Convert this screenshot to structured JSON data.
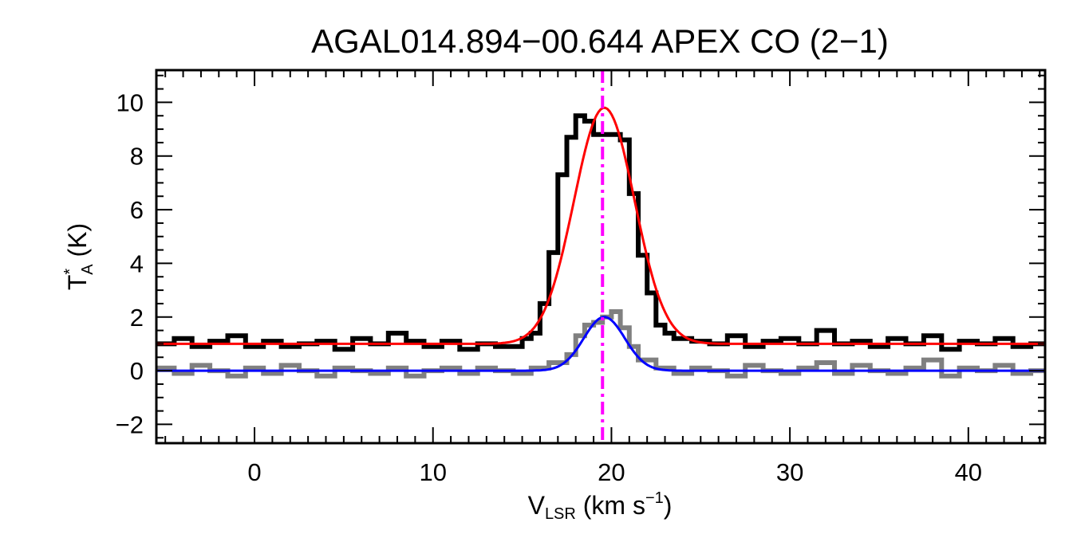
{
  "chart_data": {
    "type": "line",
    "title": "AGAL014.894−00.644  APEX CO (2−1)",
    "xlabel": {
      "main": "V",
      "sub": "LSR",
      "rest": " (km s",
      "sup": "−1",
      "close": ")"
    },
    "ylabel": {
      "main": "T",
      "sup": "*",
      "sub": "A",
      "rest": " (K)"
    },
    "xlim": [
      -5.5,
      44.3
    ],
    "ylim": [
      -2.7,
      11.2
    ],
    "x_ticks": [
      0,
      10,
      20,
      30,
      40
    ],
    "x_tick_labels": [
      "0",
      "10",
      "20",
      "30",
      "40"
    ],
    "y_ticks": [
      -2,
      0,
      2,
      4,
      6,
      8,
      10
    ],
    "y_tick_labels": [
      "−2",
      "0",
      "2",
      "4",
      "6",
      "8",
      "10"
    ],
    "x_minor_step": 1,
    "y_minor_step": 0.5,
    "grid": false,
    "vertical_marker": {
      "x": 19.5,
      "color": "#ff00ff",
      "style": "dash-dot"
    },
    "series": [
      {
        "color": "#000000",
        "style": "step",
        "x": [
          -5.5,
          -4.5,
          -3.5,
          -2.5,
          -1.5,
          -0.5,
          0.5,
          1.5,
          2.5,
          3.5,
          4.5,
          5.5,
          6.5,
          7.5,
          8.5,
          9.5,
          10.5,
          11.5,
          12.5,
          13.5,
          14.5,
          15.0,
          15.5,
          16.0,
          16.5,
          17.0,
          17.5,
          18.0,
          18.5,
          19.0,
          19.5,
          20.0,
          20.5,
          21.0,
          21.5,
          22.0,
          22.5,
          23.0,
          23.5,
          24.5,
          25.5,
          26.5,
          27.5,
          28.5,
          29.5,
          30.5,
          31.5,
          32.5,
          33.5,
          34.5,
          35.5,
          36.5,
          37.5,
          38.5,
          39.5,
          40.5,
          41.5,
          42.5,
          43.5,
          44.3
        ],
        "values": [
          1.0,
          1.2,
          0.9,
          1.1,
          1.3,
          0.9,
          1.1,
          0.9,
          1.0,
          1.1,
          0.8,
          1.2,
          1.0,
          1.4,
          1.1,
          0.9,
          1.1,
          0.8,
          1.0,
          0.9,
          0.9,
          1.2,
          1.4,
          2.5,
          4.4,
          7.3,
          8.7,
          9.5,
          9.3,
          8.8,
          8.8,
          8.8,
          8.6,
          6.6,
          4.3,
          2.9,
          1.7,
          1.4,
          1.2,
          1.1,
          1.0,
          1.3,
          0.9,
          1.1,
          1.2,
          1.0,
          1.5,
          1.0,
          1.1,
          0.9,
          1.2,
          1.0,
          1.3,
          0.8,
          1.1,
          1.0,
          1.2,
          0.9,
          1.0,
          1.0
        ]
      },
      {
        "color": "#808080",
        "style": "step",
        "x": [
          -5.5,
          -4.5,
          -3.5,
          -2.5,
          -1.5,
          -0.5,
          0.5,
          1.5,
          2.5,
          3.5,
          4.5,
          5.5,
          6.5,
          7.5,
          8.5,
          9.5,
          10.5,
          11.5,
          12.5,
          13.5,
          14.5,
          15.5,
          16.5,
          17.5,
          18.0,
          18.5,
          19.0,
          19.5,
          20.0,
          20.5,
          21.0,
          21.5,
          22.5,
          23.5,
          24.5,
          25.5,
          26.5,
          27.5,
          28.5,
          29.5,
          30.5,
          31.5,
          32.5,
          33.5,
          34.5,
          35.5,
          36.5,
          37.5,
          38.5,
          39.5,
          40.5,
          41.5,
          42.5,
          43.5,
          44.3
        ],
        "values": [
          0.1,
          -0.1,
          0.2,
          0.0,
          -0.2,
          0.1,
          -0.1,
          0.2,
          0.0,
          -0.2,
          0.1,
          0.0,
          -0.1,
          0.1,
          -0.2,
          0.0,
          0.1,
          -0.1,
          0.1,
          0.0,
          -0.1,
          0.1,
          0.3,
          0.6,
          1.3,
          1.7,
          1.8,
          2.0,
          2.2,
          1.6,
          0.9,
          0.4,
          0.1,
          -0.1,
          0.1,
          0.0,
          -0.2,
          0.2,
          0.0,
          -0.1,
          0.1,
          0.3,
          -0.1,
          0.2,
          0.0,
          -0.1,
          0.1,
          0.4,
          -0.2,
          0.1,
          0.0,
          0.2,
          -0.1,
          0.0,
          0.0
        ]
      },
      {
        "color": "#ff0000",
        "style": "gaussian",
        "baseline": 1.0,
        "amplitude": 8.8,
        "center": 19.6,
        "fwhm": 4.0
      },
      {
        "color": "#0000ff",
        "style": "gaussian",
        "baseline": 0.0,
        "amplitude": 2.0,
        "center": 19.6,
        "fwhm": 2.7
      }
    ]
  }
}
